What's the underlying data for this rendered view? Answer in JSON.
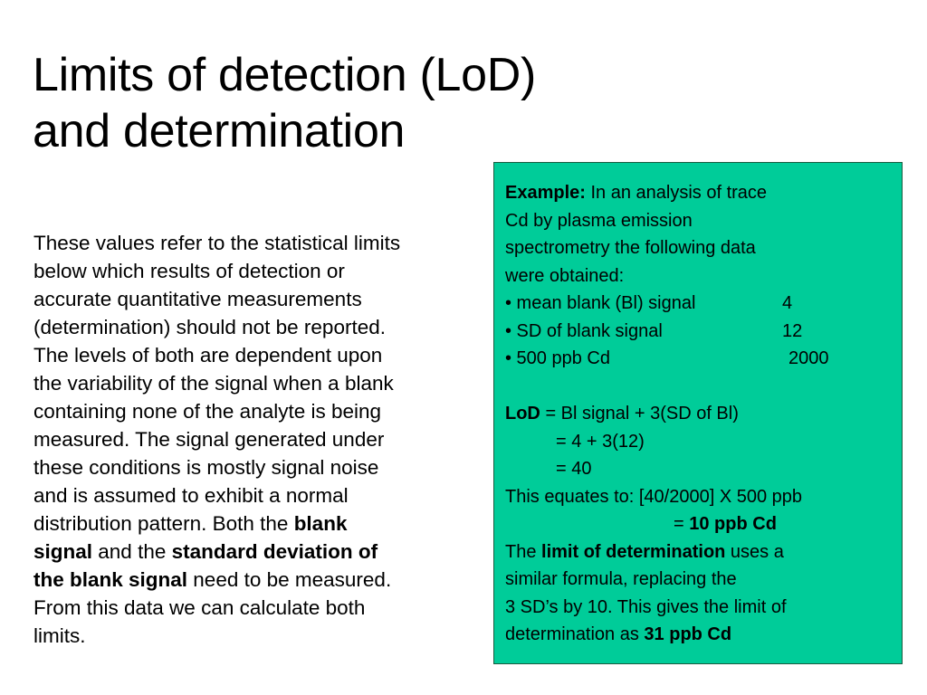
{
  "slide": {
    "title_line1": "Limits of detection (LoD)",
    "title_line2": "and determination",
    "body": {
      "segments": [
        {
          "text": "These values refer to the statistical limits"
        },
        {
          "text": "below which results of detection or"
        },
        {
          "text": "accurate quantitative measurements"
        },
        {
          "text": "(determination) should not be reported."
        },
        {
          "text": "The levels of both are dependent upon"
        },
        {
          "text": "the variability of the signal when a blank"
        },
        {
          "text": "containing none of the analyte is being"
        },
        {
          "text": "measured.  The signal generated under"
        },
        {
          "text": "these conditions is mostly signal noise"
        },
        {
          "text": "and is assumed to exhibit a normal"
        },
        {
          "text_before": "distribution pattern.  Both the ",
          "bold": "blank"
        },
        {
          "bold": "signal",
          "text_between": " and the ",
          "bold2": "standard deviation of"
        },
        {
          "bold": "the blank signal",
          "text_after": " need to be measured."
        },
        {
          "text": "From this data we can calculate both"
        },
        {
          "text": "limits."
        }
      ]
    },
    "example_box": {
      "bg_color": "#00cc99",
      "intro_bold": "Example:",
      "intro_rest": " In an analysis of trace",
      "intro_line2": "Cd by plasma emission",
      "intro_line3": "spectrometry the following data",
      "intro_line4": "were obtained:",
      "data_rows": [
        {
          "label": "• mean blank (Bl) signal",
          "value": "4"
        },
        {
          "label": "• SD of blank signal",
          "value": "12"
        },
        {
          "label": "• 500 ppb Cd",
          "value": "2000"
        }
      ],
      "lod_label": "LoD",
      "lod_formula": " = Bl signal + 3(SD of Bl)",
      "lod_step1": "= 4 + 3(12)",
      "lod_step2": "= 40",
      "equates_text": "This equates to: [40/2000] X 500 ppb",
      "result_prefix": "= ",
      "result_value": "10 ppb Cd",
      "lodet_before": "The ",
      "lodet_bold": "limit of determination",
      "lodet_after": " uses a",
      "lodet_line2": "similar formula, replacing the",
      "lodet_line3": "3 SD’s by 10. This gives the limit of",
      "lodet_line4_prefix": "determination as ",
      "lodet_line4_bold": "31 ppb Cd"
    }
  }
}
